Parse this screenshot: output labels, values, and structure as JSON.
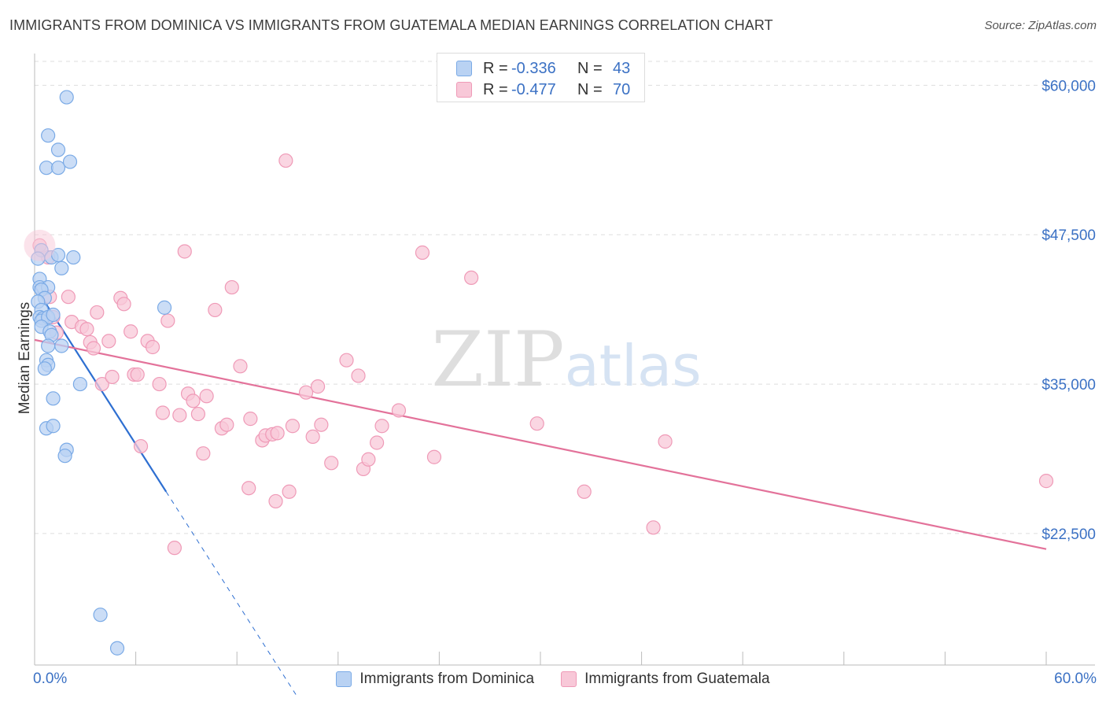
{
  "chart_data": {
    "type": "scatter",
    "title": "IMMIGRANTS FROM DOMINICA VS IMMIGRANTS FROM GUATEMALA MEDIAN EARNINGS CORRELATION CHART",
    "source": "Source: ZipAtlas.com",
    "ylabel": "Median Earnings",
    "xlabel": "",
    "xlim": [
      0,
      60
    ],
    "ylim": [
      11500,
      62000
    ],
    "x_tick_labels": [
      "0.0%",
      "60.0%"
    ],
    "y_ticks": [
      22500,
      35000,
      47500,
      60000
    ],
    "y_tick_labels": [
      "$22,500",
      "$35,000",
      "$47,500",
      "$60,000"
    ],
    "watermark": "ZIPatlas",
    "grid": true,
    "series": [
      {
        "name": "Immigrants from Dominica",
        "color": "#7aaae6",
        "fill": "#b9d2f3",
        "line_color": "#2e6fd1",
        "R": "-0.336",
        "N": "43",
        "trend": {
          "x0": 0,
          "y0": 43200,
          "x1": 7.8,
          "y1": 26000,
          "dash_to_x": 15.5
        },
        "points": [
          [
            1.9,
            59000
          ],
          [
            0.8,
            55800
          ],
          [
            1.4,
            54600
          ],
          [
            0.7,
            53100
          ],
          [
            1.4,
            53100
          ],
          [
            2.1,
            53600
          ],
          [
            0.4,
            46200
          ],
          [
            0.2,
            45500
          ],
          [
            1.0,
            45600
          ],
          [
            1.4,
            45800
          ],
          [
            2.3,
            45600
          ],
          [
            1.6,
            44700
          ],
          [
            0.3,
            43800
          ],
          [
            0.3,
            43100
          ],
          [
            0.8,
            43100
          ],
          [
            0.4,
            42900
          ],
          [
            0.6,
            42200
          ],
          [
            0.2,
            41900
          ],
          [
            0.4,
            41200
          ],
          [
            0.3,
            40600
          ],
          [
            0.5,
            40500
          ],
          [
            0.4,
            40300
          ],
          [
            0.8,
            40600
          ],
          [
            1.1,
            40800
          ],
          [
            0.4,
            39800
          ],
          [
            0.9,
            39400
          ],
          [
            1.0,
            39100
          ],
          [
            0.8,
            38200
          ],
          [
            1.6,
            38200
          ],
          [
            0.7,
            37000
          ],
          [
            0.8,
            36600
          ],
          [
            0.6,
            36300
          ],
          [
            2.7,
            35000
          ],
          [
            1.1,
            33800
          ],
          [
            7.7,
            41400
          ],
          [
            0.7,
            31300
          ],
          [
            1.1,
            31500
          ],
          [
            1.9,
            29500
          ],
          [
            1.8,
            29000
          ],
          [
            3.9,
            15700
          ],
          [
            4.9,
            12900
          ]
        ]
      },
      {
        "name": "Immigrants from Guatemala",
        "color": "#ef9ab7",
        "fill": "#f8c8d8",
        "line_color": "#e3729a",
        "R": "-0.477",
        "N": "70",
        "trend": {
          "x0": 0,
          "y0": 38700,
          "x1": 60,
          "y1": 21200
        },
        "points": [
          [
            0.3,
            46600
          ],
          [
            0.8,
            45600
          ],
          [
            0.9,
            42300
          ],
          [
            2.0,
            42300
          ],
          [
            1.1,
            40600
          ],
          [
            1.3,
            39300
          ],
          [
            2.2,
            40200
          ],
          [
            2.8,
            39800
          ],
          [
            3.1,
            39600
          ],
          [
            3.7,
            41000
          ],
          [
            3.3,
            38500
          ],
          [
            3.5,
            38000
          ],
          [
            4.4,
            38600
          ],
          [
            5.1,
            42200
          ],
          [
            5.3,
            41700
          ],
          [
            5.7,
            39400
          ],
          [
            6.7,
            38600
          ],
          [
            7.0,
            38100
          ],
          [
            7.9,
            40300
          ],
          [
            8.9,
            46100
          ],
          [
            10.7,
            41200
          ],
          [
            11.7,
            43100
          ],
          [
            12.2,
            36500
          ],
          [
            14.9,
            53700
          ],
          [
            23.0,
            46000
          ],
          [
            25.9,
            43900
          ],
          [
            4.0,
            35000
          ],
          [
            4.6,
            35600
          ],
          [
            5.9,
            35800
          ],
          [
            6.1,
            35800
          ],
          [
            7.4,
            35000
          ],
          [
            7.6,
            32600
          ],
          [
            8.6,
            32400
          ],
          [
            9.1,
            34200
          ],
          [
            9.4,
            33600
          ],
          [
            9.7,
            32500
          ],
          [
            10.2,
            34000
          ],
          [
            11.1,
            31300
          ],
          [
            11.4,
            31600
          ],
          [
            12.8,
            32100
          ],
          [
            13.5,
            30300
          ],
          [
            13.7,
            30700
          ],
          [
            14.1,
            30800
          ],
          [
            14.4,
            30900
          ],
          [
            15.3,
            31500
          ],
          [
            16.1,
            34300
          ],
          [
            16.5,
            30600
          ],
          [
            16.8,
            34800
          ],
          [
            17.0,
            31600
          ],
          [
            17.6,
            28400
          ],
          [
            18.5,
            37000
          ],
          [
            19.2,
            35700
          ],
          [
            19.5,
            27900
          ],
          [
            19.8,
            28700
          ],
          [
            20.3,
            30100
          ],
          [
            20.6,
            31500
          ],
          [
            21.6,
            32800
          ],
          [
            23.7,
            28900
          ],
          [
            29.8,
            31700
          ],
          [
            32.6,
            26000
          ],
          [
            37.4,
            30200
          ],
          [
            36.7,
            23000
          ],
          [
            60.0,
            26900
          ],
          [
            12.7,
            26300
          ],
          [
            15.1,
            26000
          ],
          [
            14.3,
            25200
          ],
          [
            6.3,
            29800
          ],
          [
            8.3,
            21300
          ],
          [
            10.0,
            29200
          ]
        ]
      }
    ]
  }
}
